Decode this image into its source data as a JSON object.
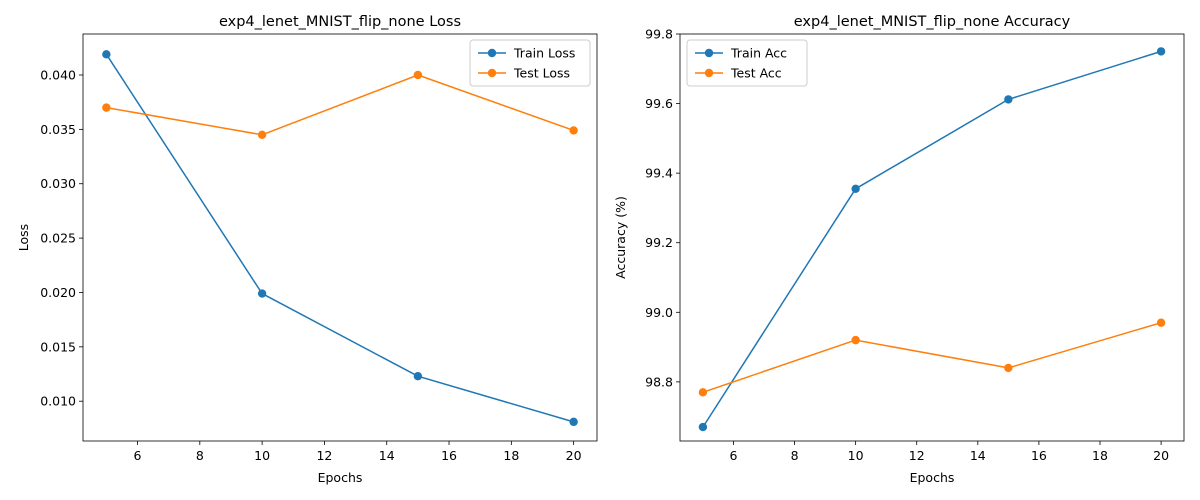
{
  "chart_data": [
    {
      "type": "line",
      "title": "exp4_lenet_MNIST_flip_none Loss",
      "xlabel": "Epochs",
      "ylabel": "Loss",
      "xlim": [
        4.25,
        20.75
      ],
      "ylim": [
        0.00634,
        0.04377
      ],
      "xticks": [
        6,
        8,
        10,
        12,
        14,
        16,
        18,
        20
      ],
      "yticks": [
        0.01,
        0.015,
        0.02,
        0.025,
        0.03,
        0.035,
        0.04
      ],
      "ytick_labels": [
        "0.010",
        "0.015",
        "0.020",
        "0.025",
        "0.030",
        "0.035",
        "0.040"
      ],
      "grid": false,
      "legend": "top-right",
      "x": [
        5,
        10,
        15,
        20
      ],
      "series": [
        {
          "name": "Train Loss",
          "color": "#1f77b4",
          "values": [
            0.0419,
            0.0199,
            0.0123,
            0.0081
          ]
        },
        {
          "name": "Test Loss",
          "color": "#ff7f0e",
          "values": [
            0.037,
            0.0345,
            0.04,
            0.0349
          ]
        }
      ]
    },
    {
      "type": "line",
      "title": "exp4_lenet_MNIST_flip_none Accuracy",
      "xlabel": "Epochs",
      "ylabel": "Accuracy (%)",
      "xlim": [
        4.25,
        20.75
      ],
      "ylim": [
        98.63,
        99.8
      ],
      "xticks": [
        6,
        8,
        10,
        12,
        14,
        16,
        18,
        20
      ],
      "yticks": [
        98.8,
        99.0,
        99.2,
        99.4,
        99.6,
        99.8
      ],
      "ytick_labels": [
        "98.8",
        "99.0",
        "99.2",
        "99.4",
        "99.6",
        "99.8"
      ],
      "grid": false,
      "legend": "top-left",
      "x": [
        5,
        10,
        15,
        20
      ],
      "series": [
        {
          "name": "Train Acc",
          "color": "#1f77b4",
          "values": [
            98.67,
            99.355,
            99.612,
            99.75
          ]
        },
        {
          "name": "Test Acc",
          "color": "#ff7f0e",
          "values": [
            98.77,
            98.92,
            98.84,
            98.97
          ]
        }
      ]
    }
  ]
}
